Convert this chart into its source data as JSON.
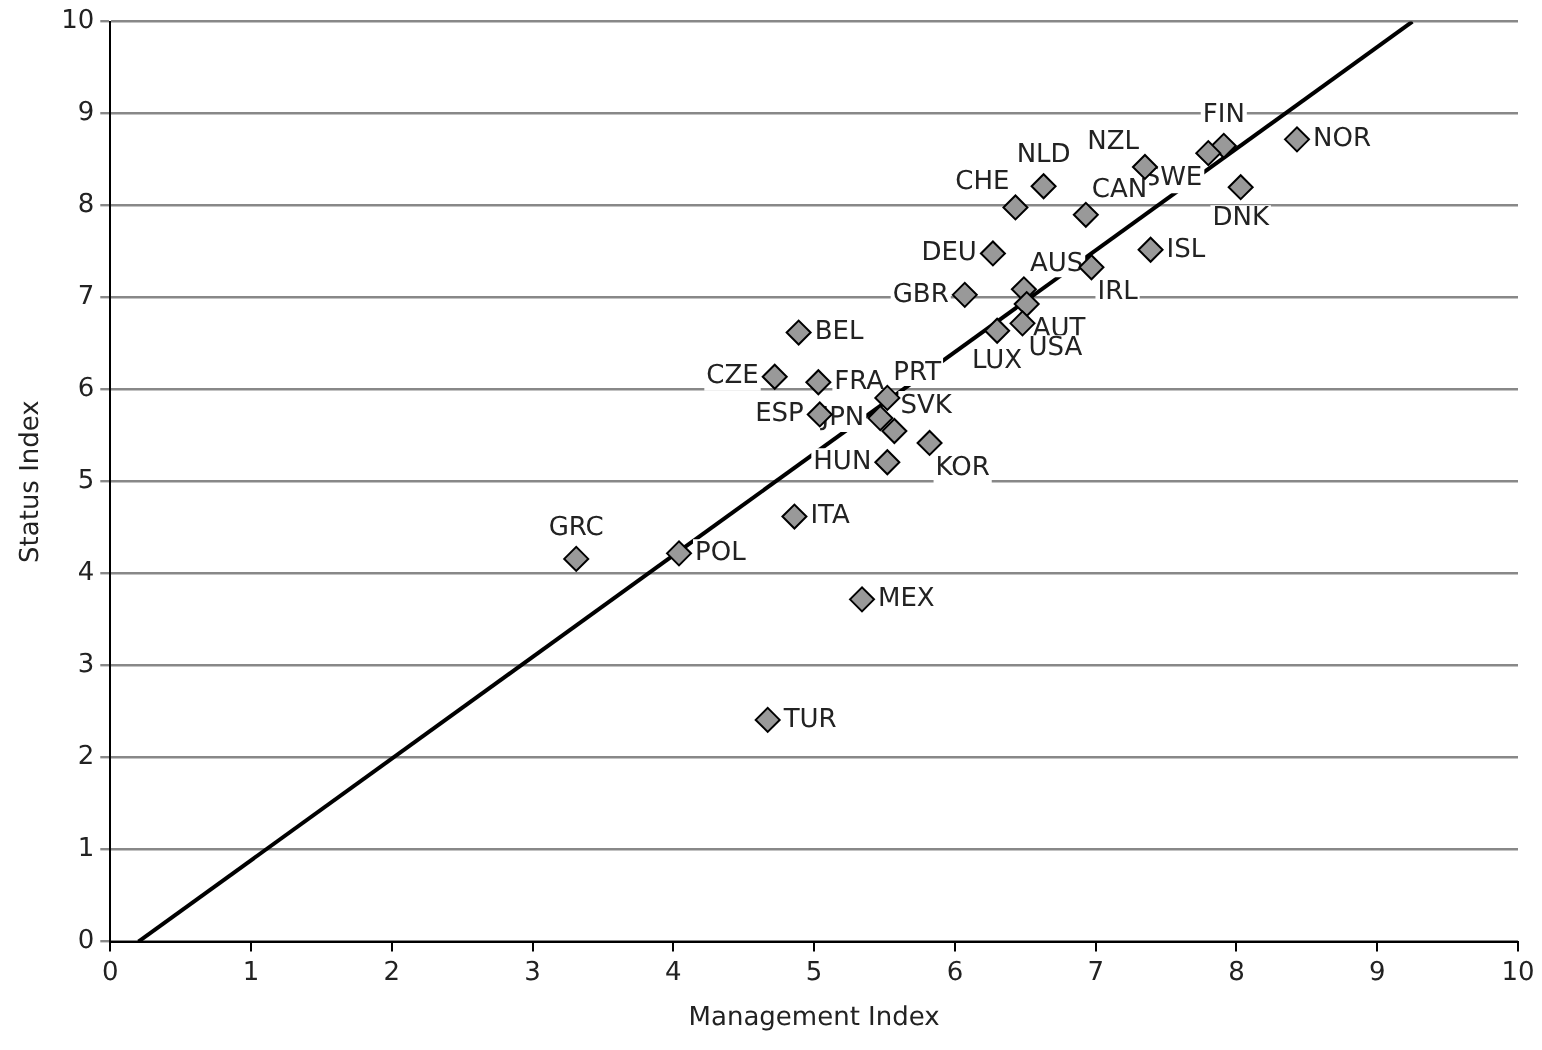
{
  "chart_data": {
    "type": "scatter",
    "xlabel": "Management Index",
    "ylabel": "Status Index",
    "xlim": [
      0,
      10
    ],
    "xticks": [
      0,
      1,
      2,
      3,
      4,
      5,
      6,
      7,
      8,
      9,
      10
    ],
    "ylim": [
      0,
      10
    ],
    "yticks": [
      0,
      1,
      2,
      3,
      4,
      5,
      6,
      7,
      8,
      9,
      10
    ],
    "grid": "y",
    "legend": false,
    "marker": "diamond",
    "series": [
      {
        "color": "#999999",
        "x": [
          7.91,
          7.8,
          8.43,
          8.03,
          7.35,
          6.63,
          6.43,
          6.93,
          6.27,
          7.39,
          6.97,
          6.49,
          6.51,
          6.07,
          6.3,
          6.48,
          4.89,
          4.72,
          5.03,
          5.52,
          5.04,
          5.47,
          5.57,
          5.82,
          5.52,
          3.31,
          4.04,
          4.86,
          5.34,
          4.67
        ],
        "values": [
          8.65,
          8.57,
          8.72,
          8.2,
          8.42,
          8.21,
          7.98,
          7.9,
          7.48,
          7.52,
          7.33,
          7.09,
          6.93,
          7.03,
          6.64,
          6.72,
          6.62,
          6.14,
          6.08,
          5.91,
          5.73,
          5.69,
          5.55,
          5.42,
          5.21,
          4.16,
          4.22,
          4.62,
          3.72,
          2.41
        ]
      },
      {
        "type": "line",
        "color": "#000000",
        "x": [
          0.2,
          9.25
        ],
        "values": [
          0,
          10
        ],
        "marker": "none"
      }
    ],
    "annotations": [
      {
        "text": "FIN",
        "x": 7.91,
        "y": 8.65
      },
      {
        "text": "SWE",
        "x": 7.8,
        "y": 8.57
      },
      {
        "text": "NOR",
        "x": 8.43,
        "y": 8.72
      },
      {
        "text": "DNK",
        "x": 8.03,
        "y": 8.2
      },
      {
        "text": "NZL",
        "x": 7.35,
        "y": 8.42
      },
      {
        "text": "NLD",
        "x": 6.63,
        "y": 8.21
      },
      {
        "text": "CHE",
        "x": 6.43,
        "y": 7.98
      },
      {
        "text": "CAN",
        "x": 6.93,
        "y": 7.9
      },
      {
        "text": "DEU",
        "x": 6.27,
        "y": 7.48
      },
      {
        "text": "ISL",
        "x": 7.39,
        "y": 7.52
      },
      {
        "text": "IRL",
        "x": 6.97,
        "y": 7.33
      },
      {
        "text": "AUS",
        "x": 6.49,
        "y": 7.09
      },
      {
        "text": "AUT",
        "x": 6.51,
        "y": 6.93
      },
      {
        "text": "GBR",
        "x": 6.07,
        "y": 7.03
      },
      {
        "text": "LUX",
        "x": 6.3,
        "y": 6.64
      },
      {
        "text": "USA",
        "x": 6.48,
        "y": 6.72
      },
      {
        "text": "BEL",
        "x": 4.89,
        "y": 6.62
      },
      {
        "text": "CZE",
        "x": 4.72,
        "y": 6.14
      },
      {
        "text": "FRA",
        "x": 5.03,
        "y": 6.08
      },
      {
        "text": "PRT",
        "x": 5.52,
        "y": 5.91
      },
      {
        "text": "ESP",
        "x": 5.04,
        "y": 5.73
      },
      {
        "text": "JPN",
        "x": 5.47,
        "y": 5.69
      },
      {
        "text": "SVK",
        "x": 5.57,
        "y": 5.55
      },
      {
        "text": "KOR",
        "x": 5.82,
        "y": 5.42
      },
      {
        "text": "HUN",
        "x": 5.52,
        "y": 5.21
      },
      {
        "text": "GRC",
        "x": 3.31,
        "y": 4.16
      },
      {
        "text": "POL",
        "x": 4.04,
        "y": 4.22
      },
      {
        "text": "ITA",
        "x": 4.86,
        "y": 4.62
      },
      {
        "text": "MEX",
        "x": 5.34,
        "y": 3.72
      },
      {
        "text": "TUR",
        "x": 4.67,
        "y": 2.41
      }
    ]
  }
}
